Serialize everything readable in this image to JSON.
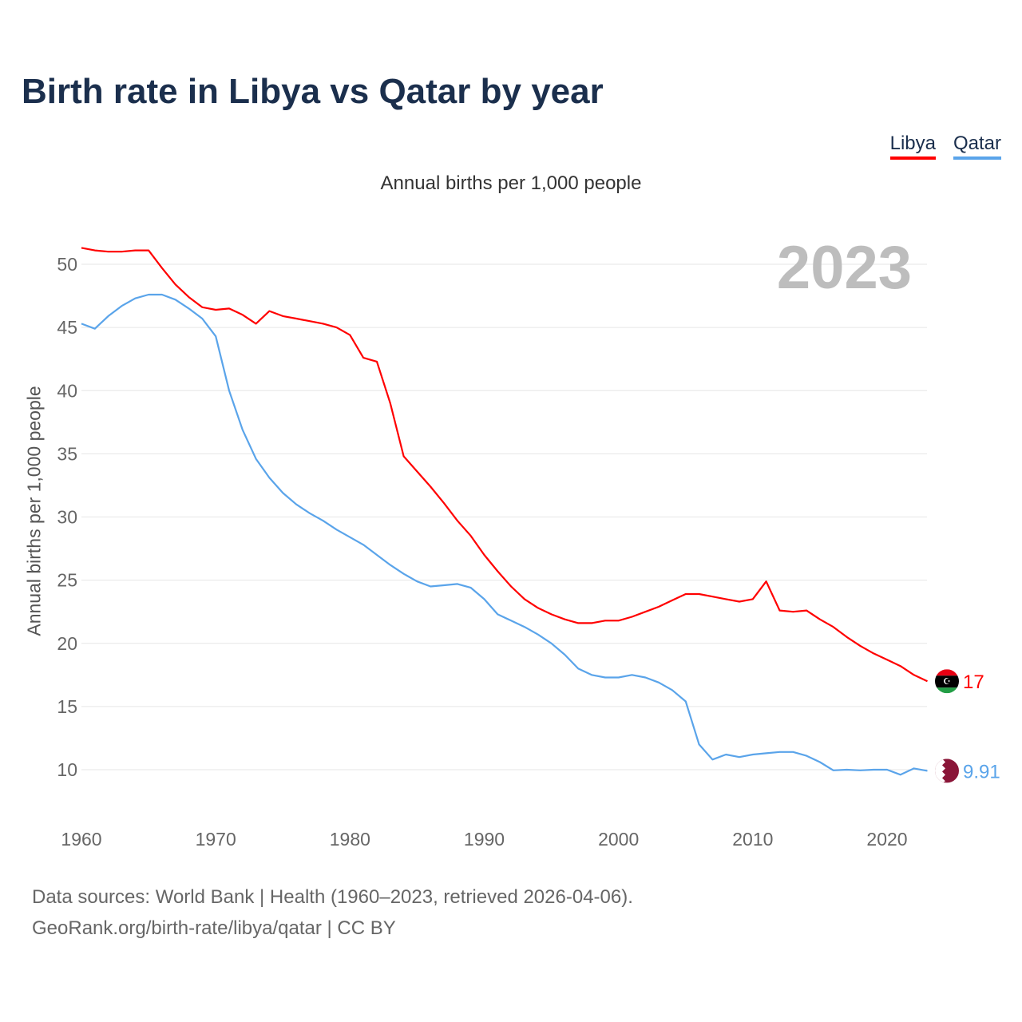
{
  "title": "Birth rate in Libya vs Qatar by year",
  "subtitle": "Annual births per 1,000 people",
  "year_overlay": "2023",
  "footer": {
    "line1": "Data sources: World Bank | Health (1960–2023, retrieved 2026-04-06).",
    "line2": "GeoRank.org/birth-rate/libya/qatar | CC BY"
  },
  "chart_data": {
    "type": "line",
    "title": "Birth rate in Libya vs Qatar by year",
    "xlabel": "",
    "ylabel": "Annual births per 1,000 people",
    "xlim": [
      1960,
      2023
    ],
    "ylim": [
      6.8,
      52
    ],
    "x_ticks": [
      "1960",
      "1970",
      "1980",
      "1990",
      "2000",
      "2010",
      "2020"
    ],
    "y_ticks": [
      "10",
      "15",
      "20",
      "25",
      "30",
      "35",
      "40",
      "45",
      "50"
    ],
    "grid": true,
    "legend_position": "top-right",
    "x_start": 1960,
    "series": [
      {
        "name": "Libya",
        "color": "#ff0000",
        "end_label": "17",
        "values": [
          51.3,
          51.1,
          51.0,
          51.0,
          51.1,
          51.1,
          49.7,
          48.4,
          47.4,
          46.6,
          46.4,
          46.5,
          46.0,
          45.3,
          46.3,
          45.9,
          45.7,
          45.5,
          45.3,
          45.0,
          44.4,
          42.6,
          42.3,
          39.0,
          34.8,
          33.6,
          32.4,
          31.1,
          29.7,
          28.5,
          27.0,
          25.7,
          24.5,
          23.5,
          22.8,
          22.3,
          21.9,
          21.6,
          21.6,
          21.8,
          21.8,
          22.1,
          22.5,
          22.9,
          23.4,
          23.9,
          23.9,
          23.7,
          23.5,
          23.3,
          23.5,
          24.9,
          22.6,
          22.5,
          22.6,
          21.9,
          21.3,
          20.5,
          19.8,
          19.2,
          18.7,
          18.2,
          17.5,
          17.0
        ]
      },
      {
        "name": "Qatar",
        "color": "#5aa4ea",
        "end_label": "9.91",
        "values": [
          45.3,
          44.9,
          45.9,
          46.7,
          47.3,
          47.6,
          47.6,
          47.2,
          46.5,
          45.7,
          44.3,
          40.0,
          36.9,
          34.6,
          33.1,
          31.9,
          31.0,
          30.3,
          29.7,
          29.0,
          28.4,
          27.8,
          27.0,
          26.2,
          25.5,
          24.9,
          24.5,
          24.6,
          24.7,
          24.4,
          23.5,
          22.3,
          21.8,
          21.3,
          20.7,
          20.0,
          19.1,
          18.0,
          17.5,
          17.3,
          17.3,
          17.5,
          17.3,
          16.9,
          16.3,
          15.4,
          12.0,
          10.8,
          11.2,
          11.0,
          11.2,
          11.3,
          11.4,
          11.4,
          11.1,
          10.6,
          9.95,
          10.0,
          9.95,
          10.0,
          10.0,
          9.6,
          10.1,
          9.91
        ]
      }
    ]
  }
}
